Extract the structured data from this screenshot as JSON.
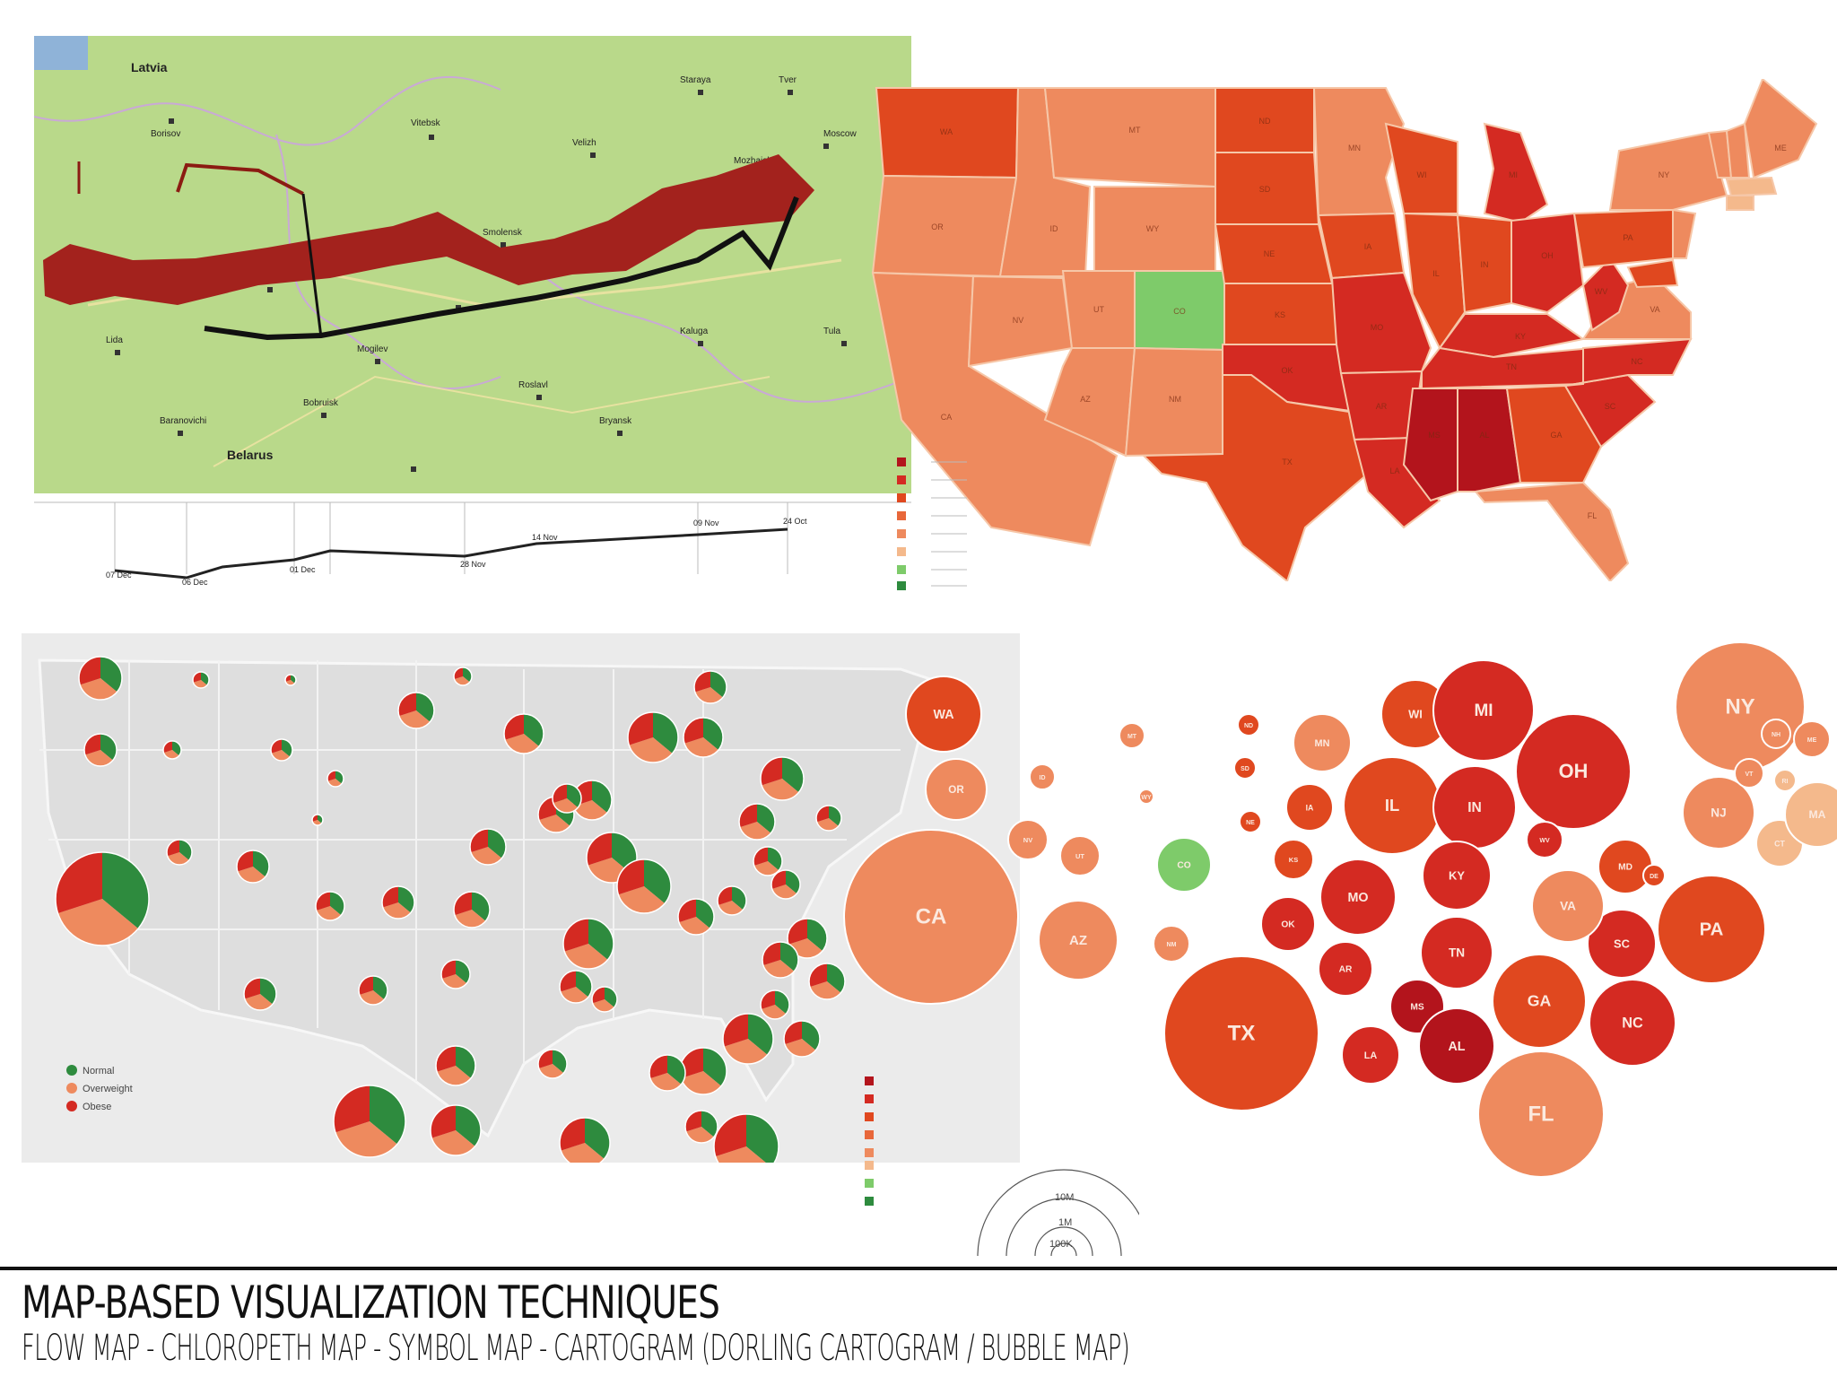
{
  "caption": {
    "title": "MAP-BASED VISUALIZATION TECHNIQUES",
    "subtitle": "FLOW MAP - CHLOROPETH MAP - SYMBOL MAP - CARTOGRAM (DORLING CARTOGRAM / BUBBLE MAP)"
  },
  "colors": {
    "very_dark_red": "#b3141c",
    "dark_red": "#d42a22",
    "red_orange": "#e0481f",
    "orange": "#e8673a",
    "light_orange": "#ee8a5e",
    "peach": "#f4b98c",
    "green": "#7ecb6a",
    "dark_green": "#2e8b3e",
    "map_green": "#b9d98a",
    "grey_map": "#e3e3e3",
    "flow_advance": "#a3221d",
    "flow_retreat": "#111111"
  },
  "flow_map": {
    "places": [
      "Latvia",
      "Belarus"
    ],
    "temperature_dates": [
      "24 Oct",
      "09 Nov",
      "14 Nov",
      "28 Nov",
      "01 Dec",
      "06 Dec",
      "07 Dec"
    ]
  },
  "choropleth": {
    "states": [
      "WA",
      "OR",
      "CA",
      "ID",
      "NV",
      "MT",
      "WY",
      "UT",
      "AZ",
      "CO",
      "NM",
      "ND",
      "SD",
      "NE",
      "KS",
      "OK",
      "TX",
      "MN",
      "IA",
      "MO",
      "AR",
      "LA",
      "WI",
      "IL",
      "MI",
      "IN",
      "OH",
      "KY",
      "TN",
      "MS",
      "AL",
      "GA",
      "FL",
      "SC",
      "NC",
      "VA",
      "WV",
      "PA",
      "NY",
      "VT",
      "NH",
      "ME",
      "MA",
      "CT",
      "NJ",
      "MD",
      "DE",
      "RI"
    ],
    "highlighted_state": "CO"
  },
  "symbol_map": {
    "legend": [
      "Normal",
      "Overweight",
      "Obese"
    ],
    "size_legend": [
      "100K",
      "1M",
      "10M"
    ]
  },
  "cartogram": {
    "bubbles": [
      {
        "state": "WA",
        "tone": "red_orange"
      },
      {
        "state": "OR",
        "tone": "light_orange"
      },
      {
        "state": "CA",
        "tone": "light_orange"
      },
      {
        "state": "NV",
        "tone": "light_orange"
      },
      {
        "state": "UT",
        "tone": "light_orange"
      },
      {
        "state": "AZ",
        "tone": "light_orange"
      },
      {
        "state": "CO",
        "tone": "green"
      },
      {
        "state": "NM",
        "tone": "light_orange"
      },
      {
        "state": "ID",
        "tone": "light_orange"
      },
      {
        "state": "MT",
        "tone": "light_orange"
      },
      {
        "state": "WY",
        "tone": "light_orange"
      },
      {
        "state": "ND",
        "tone": "red_orange"
      },
      {
        "state": "SD",
        "tone": "red_orange"
      },
      {
        "state": "NE",
        "tone": "red_orange"
      },
      {
        "state": "MN",
        "tone": "light_orange"
      },
      {
        "state": "IA",
        "tone": "red_orange"
      },
      {
        "state": "KS",
        "tone": "red_orange"
      },
      {
        "state": "OK",
        "tone": "dark_red"
      },
      {
        "state": "TX",
        "tone": "red_orange"
      },
      {
        "state": "MO",
        "tone": "dark_red"
      },
      {
        "state": "AR",
        "tone": "dark_red"
      },
      {
        "state": "LA",
        "tone": "dark_red"
      },
      {
        "state": "MS",
        "tone": "very_dark_red"
      },
      {
        "state": "AL",
        "tone": "very_dark_red"
      },
      {
        "state": "WI",
        "tone": "red_orange"
      },
      {
        "state": "IL",
        "tone": "red_orange"
      },
      {
        "state": "MI",
        "tone": "dark_red"
      },
      {
        "state": "IN",
        "tone": "dark_red"
      },
      {
        "state": "OH",
        "tone": "dark_red"
      },
      {
        "state": "KY",
        "tone": "dark_red"
      },
      {
        "state": "TN",
        "tone": "dark_red"
      },
      {
        "state": "WV",
        "tone": "dark_red"
      },
      {
        "state": "GA",
        "tone": "red_orange"
      },
      {
        "state": "FL",
        "tone": "light_orange"
      },
      {
        "state": "SC",
        "tone": "dark_red"
      },
      {
        "state": "NC",
        "tone": "dark_red"
      },
      {
        "state": "VA",
        "tone": "light_orange"
      },
      {
        "state": "MD",
        "tone": "red_orange"
      },
      {
        "state": "DE",
        "tone": "red_orange"
      },
      {
        "state": "PA",
        "tone": "red_orange"
      },
      {
        "state": "NY",
        "tone": "light_orange"
      },
      {
        "state": "NJ",
        "tone": "light_orange"
      },
      {
        "state": "CT",
        "tone": "peach"
      },
      {
        "state": "MA",
        "tone": "peach"
      },
      {
        "state": "RI",
        "tone": "peach"
      },
      {
        "state": "VT",
        "tone": "light_orange"
      },
      {
        "state": "NH",
        "tone": "light_orange"
      },
      {
        "state": "ME",
        "tone": "light_orange"
      }
    ]
  }
}
